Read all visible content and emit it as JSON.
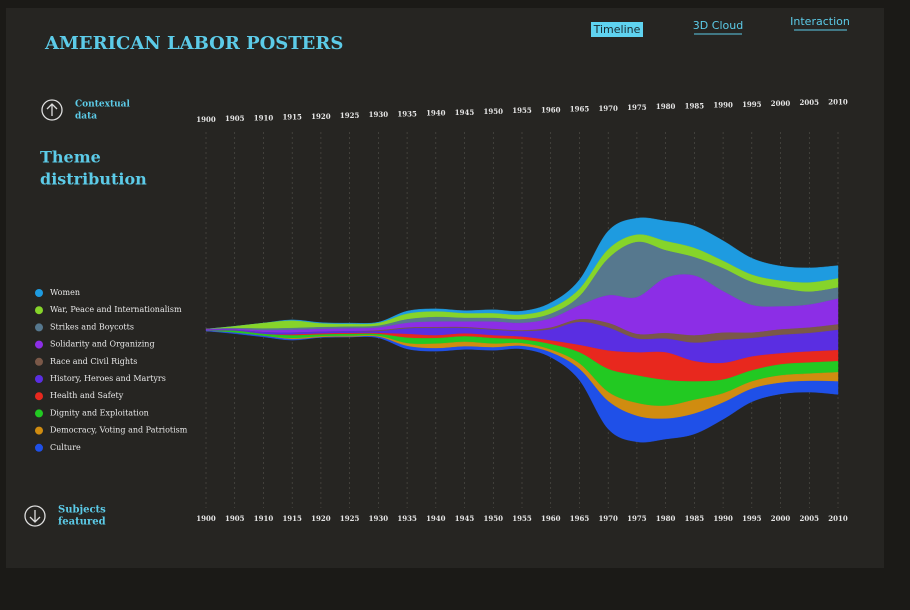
{
  "page": {
    "title": "AMERICAN LABOR POSTERS",
    "nav": [
      "Timeline",
      "3D Cloud",
      "Interaction"
    ],
    "contextual": [
      "Contextual",
      "data"
    ],
    "heading": [
      "Theme",
      "distribution"
    ],
    "subjects": [
      "Subjects",
      "featured"
    ]
  },
  "chart_data": {
    "type": "streamgraph",
    "x": [
      1900,
      1905,
      1910,
      1915,
      1920,
      1925,
      1930,
      1935,
      1940,
      1945,
      1950,
      1955,
      1960,
      1965,
      1970,
      1975,
      1980,
      1985,
      1990,
      1995,
      2000,
      2005,
      2010
    ],
    "xlim": [
      1900,
      2010
    ],
    "xticks": [
      1900,
      1905,
      1910,
      1915,
      1920,
      1925,
      1930,
      1935,
      1940,
      1945,
      1950,
      1955,
      1960,
      1965,
      1970,
      1975,
      1980,
      1985,
      1990,
      1995,
      2000,
      2005,
      2010
    ],
    "grid": true,
    "series": [
      {
        "name": "Women",
        "color": "#1e9be0",
        "values": [
          0,
          0,
          0,
          1,
          1,
          1,
          1,
          3,
          3,
          3,
          4,
          4,
          6,
          10,
          20,
          18,
          22,
          24,
          22,
          18,
          16,
          16,
          14
        ]
      },
      {
        "name": "War, Peace and Internationalism",
        "color": "#86d42a",
        "values": [
          0,
          2,
          6,
          8,
          4,
          3,
          3,
          6,
          6,
          5,
          5,
          5,
          6,
          8,
          10,
          8,
          10,
          10,
          8,
          8,
          8,
          10,
          10
        ]
      },
      {
        "name": "Strikes and Boycotts",
        "color": "#56788e",
        "values": [
          0,
          1,
          2,
          2,
          2,
          2,
          2,
          4,
          5,
          4,
          4,
          4,
          5,
          10,
          40,
          60,
          30,
          20,
          25,
          25,
          20,
          14,
          12
        ]
      },
      {
        "name": "Solidarity and Organizing",
        "color": "#8c2ee6",
        "values": [
          1,
          1,
          2,
          3,
          3,
          3,
          3,
          5,
          6,
          6,
          8,
          8,
          10,
          15,
          30,
          40,
          60,
          65,
          45,
          30,
          25,
          25,
          28
        ]
      },
      {
        "name": "Race and Civil Rights",
        "color": "#7a5848",
        "values": [
          0,
          0,
          0,
          0,
          0,
          0,
          1,
          1,
          1,
          1,
          1,
          1,
          2,
          3,
          5,
          5,
          6,
          8,
          8,
          6,
          6,
          6,
          6
        ]
      },
      {
        "name": "History, Heroes and Martyrs",
        "color": "#5a2ee2",
        "values": [
          1,
          1,
          2,
          2,
          2,
          2,
          2,
          6,
          8,
          6,
          6,
          6,
          12,
          25,
          25,
          15,
          15,
          20,
          25,
          20,
          20,
          20,
          22
        ]
      },
      {
        "name": "Health and Safety",
        "color": "#e8281e",
        "values": [
          0,
          0,
          0,
          1,
          1,
          1,
          1,
          4,
          3,
          3,
          3,
          3,
          4,
          8,
          20,
          25,
          30,
          22,
          18,
          15,
          12,
          12,
          12
        ]
      },
      {
        "name": "Dignity and Exploitation",
        "color": "#22c922",
        "values": [
          0,
          2,
          2,
          3,
          2,
          2,
          2,
          6,
          6,
          6,
          6,
          4,
          6,
          12,
          25,
          30,
          28,
          20,
          15,
          12,
          12,
          12,
          12
        ]
      },
      {
        "name": "Democracy, Voting and Patriotism",
        "color": "#d08c10",
        "values": [
          0,
          0,
          0,
          1,
          1,
          1,
          1,
          3,
          5,
          5,
          4,
          3,
          3,
          6,
          10,
          14,
          14,
          15,
          10,
          8,
          8,
          8,
          10
        ]
      },
      {
        "name": "Culture",
        "color": "#1f50e8",
        "values": [
          0,
          1,
          1,
          1,
          0,
          0,
          1,
          3,
          3,
          3,
          3,
          3,
          5,
          12,
          30,
          28,
          22,
          22,
          18,
          14,
          12,
          12,
          14
        ]
      }
    ]
  }
}
